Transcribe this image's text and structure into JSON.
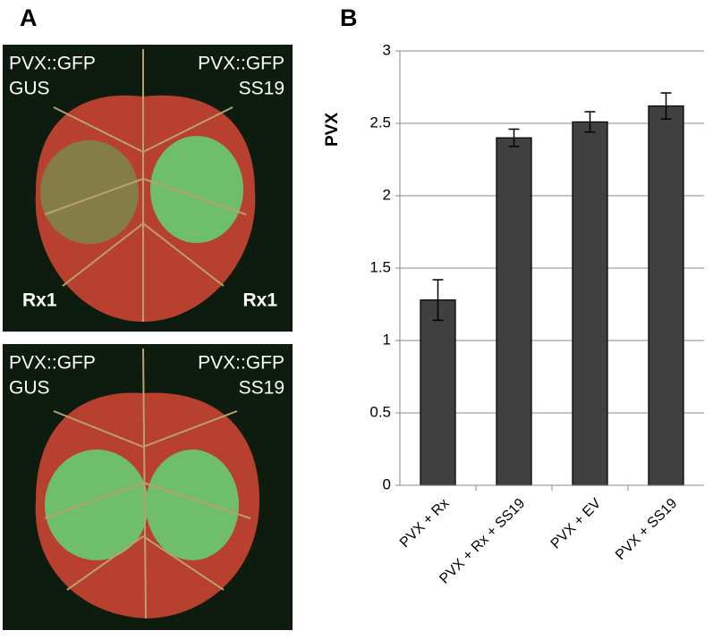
{
  "panel_a": {
    "label": "A",
    "leaves": [
      {
        "top_left": [
          "PVX::GFP",
          "GUS"
        ],
        "top_right": [
          "PVX::GFP",
          "SS19"
        ],
        "bottom_left": "Rx1",
        "bottom_right": "Rx1"
      },
      {
        "top_left": [
          "PVX::GFP",
          "GUS"
        ],
        "top_right": [
          "PVX::GFP",
          "SS19"
        ]
      }
    ]
  },
  "chart_data": {
    "type": "bar",
    "label": "B",
    "ylabel": "PVX",
    "categories": [
      "PVX + Rx",
      "PVX + Rx + SS19",
      "PVX + EV",
      "PVX + SS19"
    ],
    "values": [
      1.28,
      2.4,
      2.51,
      2.62
    ],
    "errors": [
      0.14,
      0.06,
      0.07,
      0.09
    ],
    "color": "#404040",
    "ylim": [
      0,
      3
    ],
    "yticks": [
      0,
      0.5,
      1,
      1.5,
      2,
      2.5,
      3
    ],
    "grid": true
  }
}
